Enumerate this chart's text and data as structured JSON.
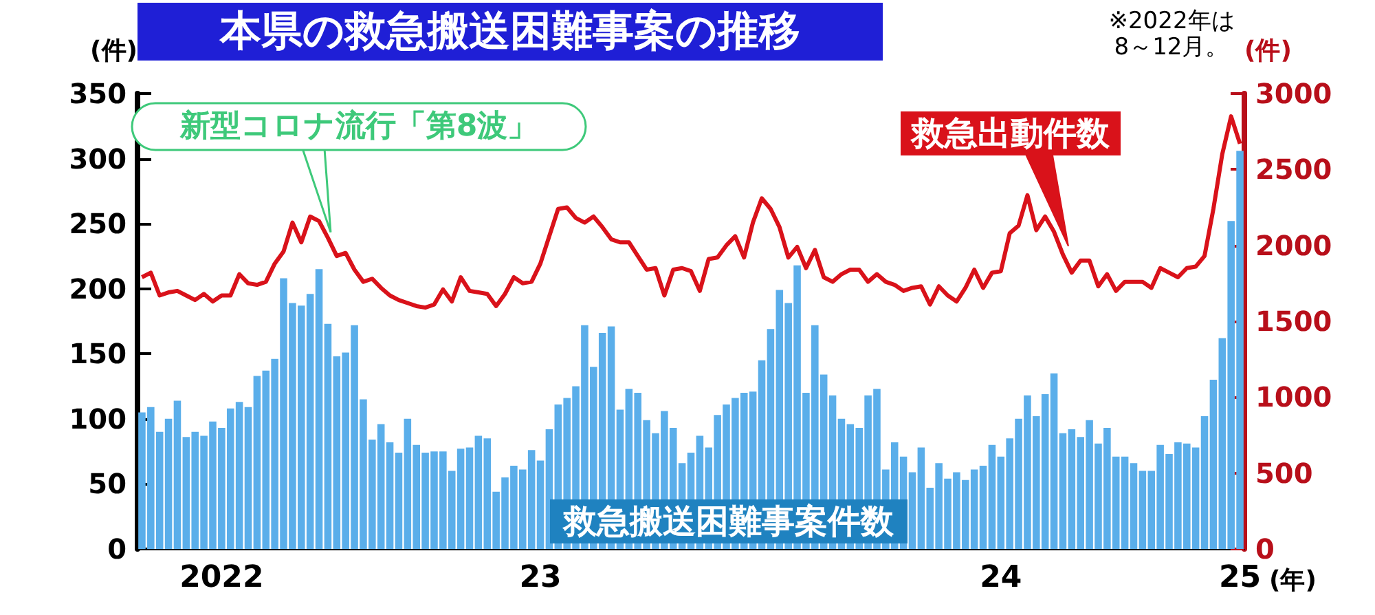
{
  "chart_data": {
    "type": "bar",
    "title": "本県の救急搬送困難事案の推移",
    "ylabel": "(件)",
    "y2label": "(件)",
    "xlabel": "(年)",
    "annotations": [
      "新型コロナ流行「第8波」",
      "※2022年は8～12月。"
    ],
    "categories": [
      null,
      null,
      null,
      null,
      null,
      null,
      null,
      null,
      null,
      "2022",
      null,
      null,
      null,
      null,
      null,
      null,
      null,
      null,
      null,
      null,
      null,
      null,
      null,
      null,
      null,
      null,
      null,
      null,
      null,
      null,
      null,
      null,
      null,
      null,
      null,
      null,
      null,
      null,
      null,
      null,
      null,
      null,
      null,
      null,
      null,
      "23",
      null,
      null,
      null,
      null,
      null,
      null,
      null,
      null,
      null,
      null,
      null,
      null,
      null,
      null,
      null,
      null,
      null,
      null,
      null,
      null,
      null,
      null,
      null,
      null,
      null,
      null,
      null,
      null,
      null,
      null,
      null,
      null,
      null,
      null,
      null,
      null,
      null,
      null,
      null,
      null,
      null,
      null,
      null,
      null,
      null,
      null,
      null,
      null,
      null,
      null,
      null,
      "24",
      null,
      null,
      null,
      null,
      null,
      null,
      null,
      null,
      null,
      null,
      null,
      null,
      null,
      null,
      null,
      null,
      null,
      null,
      null,
      null,
      null,
      null,
      null,
      null,
      null,
      null,
      "25"
    ],
    "series": [
      {
        "name": "救急搬送困難事案件数",
        "color": "#5aaeea",
        "values": [
          105,
          109,
          90,
          100,
          114,
          86,
          90,
          87,
          98,
          93,
          108,
          113,
          109,
          133,
          137,
          146,
          208,
          189,
          187,
          196,
          215,
          173,
          148,
          151,
          172,
          115,
          84,
          96,
          82,
          74,
          100,
          80,
          74,
          75,
          75,
          60,
          77,
          78,
          87,
          85,
          44,
          55,
          64,
          61,
          76,
          68,
          92,
          111,
          116,
          125,
          172,
          140,
          166,
          171,
          107,
          123,
          120,
          99,
          89,
          106,
          93,
          66,
          74,
          87,
          78,
          103,
          111,
          116,
          120,
          121,
          145,
          169,
          199,
          189,
          218,
          120,
          172,
          134,
          118,
          100,
          96,
          93,
          118,
          123,
          61,
          82,
          71,
          59,
          78,
          47,
          66,
          54,
          59,
          53,
          61,
          64,
          80,
          71,
          85,
          100,
          118,
          102,
          119,
          135,
          89,
          92,
          86,
          99,
          81,
          93,
          71,
          71,
          66,
          60,
          60,
          80,
          73,
          82,
          81,
          78,
          102,
          130,
          162,
          252,
          306
        ]
      },
      {
        "name": "救急出動件数",
        "type": "line",
        "axis": "y2",
        "color": "#d9121a",
        "values": [
          1790,
          1820,
          1670,
          1690,
          1700,
          1670,
          1640,
          1680,
          1630,
          1670,
          1670,
          1810,
          1750,
          1740,
          1760,
          1880,
          1960,
          2150,
          2020,
          2190,
          2160,
          2050,
          1930,
          1950,
          1840,
          1760,
          1780,
          1720,
          1670,
          1640,
          1620,
          1600,
          1590,
          1610,
          1710,
          1630,
          1790,
          1700,
          1690,
          1680,
          1600,
          1680,
          1790,
          1750,
          1760,
          1880,
          2060,
          2240,
          2250,
          2180,
          2150,
          2190,
          2120,
          2040,
          2020,
          2020,
          1930,
          1840,
          1850,
          1670,
          1840,
          1850,
          1830,
          1700,
          1910,
          1920,
          2000,
          2060,
          1920,
          2150,
          2310,
          2240,
          2120,
          1920,
          1990,
          1850,
          1970,
          1790,
          1760,
          1810,
          1840,
          1840,
          1760,
          1810,
          1760,
          1740,
          1700,
          1720,
          1730,
          1610,
          1730,
          1670,
          1630,
          1720,
          1840,
          1720,
          1820,
          1830,
          2080,
          2130,
          2330,
          2100,
          2190,
          2090,
          1940,
          1820,
          1900,
          1900,
          1730,
          1810,
          1700,
          1760,
          1760,
          1760,
          1720,
          1850,
          1820,
          1790,
          1850,
          1860,
          1930,
          2240,
          2600,
          2850,
          2670
        ]
      }
    ],
    "ylim": [
      0,
      350
    ],
    "yticks": [
      0,
      50,
      100,
      150,
      200,
      250,
      300,
      350
    ],
    "y2lim": [
      0,
      3000
    ],
    "y2ticks": [
      0,
      500,
      1000,
      1500,
      2000,
      2500,
      3000
    ],
    "line_style": "solid",
    "marker": "none",
    "grid": false
  }
}
